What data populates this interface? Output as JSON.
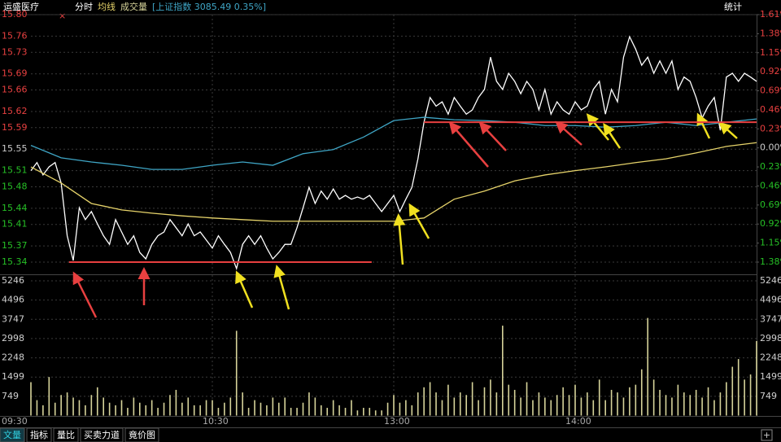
{
  "header": {
    "stock": "运盛医疗",
    "stats": "统计"
  },
  "chart_data": [
    {
      "type": "line",
      "xlim": [
        0,
        240
      ],
      "xticks": [
        {
          "value": 0,
          "label": "09:30"
        },
        {
          "value": 60,
          "label": "10:30"
        },
        {
          "value": 120,
          "label": "13:00"
        },
        {
          "value": 180,
          "label": "14:00"
        }
      ],
      "ylim": [
        15.34,
        15.8
      ],
      "yticks": [
        {
          "value": 15.8,
          "label": "15.80"
        },
        15.76,
        15.73,
        15.69,
        15.66,
        15.62,
        15.59,
        15.55,
        15.51,
        15.48,
        15.44,
        15.41,
        15.37,
        15.34
      ],
      "y2lim": [
        -1.38,
        1.61
      ],
      "y2ticks": [
        {
          "value": 1.61,
          "label": "1.61%"
        },
        {
          "value": 1.38,
          "label": "1.38%"
        },
        {
          "value": 1.15,
          "label": "1.15%"
        },
        {
          "value": 0.92,
          "label": "0.92%"
        },
        {
          "value": 0.69,
          "label": "0.69%"
        },
        {
          "value": 0.46,
          "label": "0.46%"
        },
        {
          "value": 0.23,
          "label": "0.23%"
        },
        {
          "value": 0,
          "label": "0.00%"
        },
        {
          "value": -0.23,
          "label": "0.23%"
        },
        {
          "value": -0.46,
          "label": "0.46%"
        },
        {
          "value": -0.69,
          "label": "0.69%"
        },
        {
          "value": -0.92,
          "label": "0.92%"
        },
        {
          "value": -1.15,
          "label": "1.15%"
        },
        {
          "value": -1.38,
          "label": "1.38%"
        }
      ],
      "grid": true,
      "series": [
        {
          "name": "分时",
          "color": "#ffffff",
          "x": [
            0,
            2,
            4,
            6,
            8,
            10,
            12,
            14,
            16,
            18,
            20,
            22,
            24,
            26,
            28,
            30,
            32,
            34,
            36,
            38,
            40,
            42,
            44,
            46,
            48,
            50,
            52,
            54,
            56,
            58,
            60,
            62,
            64,
            66,
            68,
            70,
            72,
            74,
            76,
            78,
            80,
            82,
            84,
            86,
            88,
            90,
            92,
            94,
            96,
            98,
            100,
            102,
            104,
            106,
            108,
            110,
            112,
            114,
            116,
            118,
            120,
            122,
            124,
            126,
            128,
            130,
            132,
            134,
            136,
            138,
            140,
            142,
            144,
            146,
            148,
            150,
            152,
            154,
            156,
            158,
            160,
            162,
            164,
            166,
            168,
            170,
            172,
            174,
            176,
            178,
            180,
            182,
            184,
            186,
            188,
            190,
            192,
            194,
            196,
            198,
            200,
            202,
            204,
            206,
            208,
            210,
            212,
            214,
            216,
            218,
            220,
            222,
            224,
            226,
            228,
            230,
            232,
            234,
            236,
            238,
            240
          ],
          "values": [
            15.51,
            15.525,
            15.502,
            15.517,
            15.525,
            15.487,
            15.389,
            15.343,
            15.441,
            15.419,
            15.434,
            15.411,
            15.389,
            15.373,
            15.419,
            15.396,
            15.373,
            15.389,
            15.358,
            15.346,
            15.373,
            15.389,
            15.396,
            15.419,
            15.404,
            15.389,
            15.411,
            15.389,
            15.396,
            15.381,
            15.366,
            15.389,
            15.373,
            15.358,
            15.328,
            15.373,
            15.389,
            15.373,
            15.389,
            15.366,
            15.346,
            15.358,
            15.373,
            15.373,
            15.404,
            15.441,
            15.479,
            15.449,
            15.472,
            15.457,
            15.476,
            15.457,
            15.464,
            15.457,
            15.461,
            15.457,
            15.464,
            15.449,
            15.434,
            15.449,
            15.464,
            15.434,
            15.457,
            15.479,
            15.532,
            15.6,
            15.646,
            15.63,
            15.638,
            15.615,
            15.646,
            15.63,
            15.615,
            15.623,
            15.646,
            15.661,
            15.721,
            15.676,
            15.661,
            15.691,
            15.676,
            15.653,
            15.676,
            15.661,
            15.623,
            15.661,
            15.615,
            15.638,
            15.623,
            15.615,
            15.638,
            15.623,
            15.63,
            15.661,
            15.676,
            15.615,
            15.661,
            15.638,
            15.721,
            15.759,
            15.736,
            15.706,
            15.721,
            15.691,
            15.714,
            15.691,
            15.714,
            15.661,
            15.684,
            15.676,
            15.646,
            15.608,
            15.63,
            15.646,
            15.585,
            15.684,
            15.691,
            15.676,
            15.691,
            15.684,
            15.676
          ]
        },
        {
          "name": "均线",
          "color": "#e6d36a",
          "x": [
            0,
            10,
            20,
            30,
            40,
            50,
            60,
            70,
            80,
            90,
            100,
            110,
            120,
            130,
            140,
            150,
            160,
            170,
            180,
            190,
            200,
            210,
            220,
            230,
            240
          ],
          "values": [
            15.517,
            15.487,
            15.449,
            15.437,
            15.431,
            15.426,
            15.422,
            15.419,
            15.416,
            15.416,
            15.416,
            15.416,
            15.416,
            15.422,
            15.457,
            15.472,
            15.491,
            15.502,
            15.51,
            15.517,
            15.525,
            15.532,
            15.543,
            15.555,
            15.562
          ]
        },
        {
          "name": "[上证指数 3085.49 0.35%]",
          "color": "#3fa6c6",
          "axis": "y2",
          "x": [
            0,
            10,
            20,
            30,
            40,
            50,
            60,
            70,
            80,
            90,
            100,
            110,
            120,
            130,
            140,
            150,
            160,
            170,
            180,
            190,
            200,
            210,
            220,
            230,
            240
          ],
          "values": [
            0.03,
            -0.12,
            -0.17,
            -0.21,
            -0.26,
            -0.26,
            -0.21,
            -0.17,
            -0.21,
            -0.07,
            -0.02,
            0.13,
            0.33,
            0.37,
            0.34,
            0.33,
            0.31,
            0.27,
            0.27,
            0.25,
            0.27,
            0.31,
            0.27,
            0.31,
            0.35
          ]
        }
      ],
      "annotations": [
        {
          "type": "hline",
          "y": 15.34,
          "x": [
            12.6,
            112.7
          ],
          "color": "#e84040"
        },
        {
          "type": "hline",
          "y": 15.6,
          "x": [
            130,
            240
          ],
          "color": "#e84040"
        }
      ]
    },
    {
      "type": "bar",
      "ylim": [
        0,
        5246
      ],
      "yticks": [
        5246,
        4496,
        3747,
        2998,
        2248,
        1499,
        749
      ],
      "grid": true,
      "x": [
        0,
        2,
        4,
        6,
        8,
        10,
        12,
        14,
        16,
        18,
        20,
        22,
        24,
        26,
        28,
        30,
        32,
        34,
        36,
        38,
        40,
        42,
        44,
        46,
        48,
        50,
        52,
        54,
        56,
        58,
        60,
        62,
        64,
        66,
        68,
        70,
        72,
        74,
        76,
        78,
        80,
        82,
        84,
        86,
        88,
        90,
        92,
        94,
        96,
        98,
        100,
        102,
        104,
        106,
        108,
        110,
        112,
        114,
        116,
        118,
        120,
        122,
        124,
        126,
        128,
        130,
        132,
        134,
        136,
        138,
        140,
        142,
        144,
        146,
        148,
        150,
        152,
        154,
        156,
        158,
        160,
        162,
        164,
        166,
        168,
        170,
        172,
        174,
        176,
        178,
        180,
        182,
        184,
        186,
        188,
        190,
        192,
        194,
        196,
        198,
        200,
        202,
        204,
        206,
        208,
        210,
        212,
        214,
        216,
        218,
        220,
        222,
        224,
        226,
        228,
        230,
        232,
        234,
        236,
        238,
        240
      ],
      "series": [
        {
          "name": "成交量",
          "color": "#d6d39a",
          "values": [
            1300,
            600,
            400,
            1500,
            500,
            800,
            900,
            700,
            600,
            400,
            800,
            1100,
            700,
            500,
            400,
            600,
            300,
            700,
            500,
            400,
            600,
            300,
            500,
            800,
            1000,
            500,
            700,
            400,
            400,
            600,
            600,
            300,
            500,
            700,
            3300,
            900,
            300,
            600,
            500,
            400,
            700,
            500,
            700,
            300,
            300,
            500,
            900,
            700,
            400,
            300,
            600,
            400,
            300,
            600,
            200,
            300,
            300,
            200,
            200,
            500,
            800,
            500,
            600,
            400,
            900,
            1100,
            1300,
            900,
            600,
            1200,
            700,
            900,
            800,
            1300,
            600,
            1100,
            1400,
            900,
            3500,
            1200,
            1000,
            700,
            1300,
            600,
            900,
            700,
            600,
            800,
            1100,
            800,
            1200,
            700,
            900,
            600,
            1400,
            600,
            1000,
            900,
            700,
            1100,
            1200,
            1800,
            3800,
            1400,
            1000,
            800,
            700,
            1200,
            900,
            800,
            1000,
            700,
            1100,
            600,
            900,
            1300,
            1900,
            2200,
            1400,
            1600,
            2900
          ]
        }
      ]
    }
  ],
  "tabs": [
    "文量",
    "指标",
    "量比",
    "买卖力道",
    "竟价图"
  ]
}
